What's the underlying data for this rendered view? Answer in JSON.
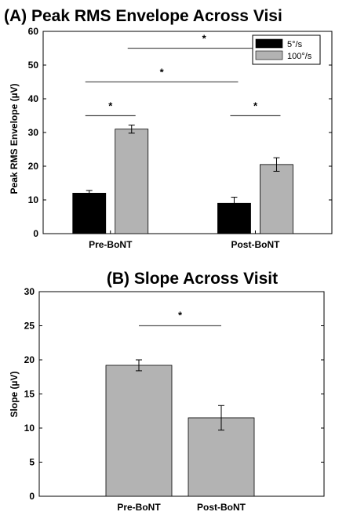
{
  "colors": {
    "series_dark": "#000000",
    "series_light": "#b3b3b3",
    "axis": "#000000",
    "sig_line": "#555555"
  },
  "chart_data": [
    {
      "type": "bar",
      "title": "(A) Peak RMS Envelope Across Visi",
      "ylabel": "Peak RMS Envelope (µV)",
      "xlabel": "",
      "categories": [
        "Pre-BoNT",
        "Post-BoNT"
      ],
      "ylim": [
        0,
        60
      ],
      "yticks": [
        0,
        10,
        20,
        30,
        40,
        50,
        60
      ],
      "grid": false,
      "legend": "top-right",
      "series": [
        {
          "name": "5°/s",
          "values": [
            12,
            9
          ],
          "errors": [
            0.8,
            1.8
          ]
        },
        {
          "name": "100°/s",
          "values": [
            31,
            20.5
          ],
          "errors": [
            1.2,
            2.0
          ]
        }
      ],
      "significance": [
        {
          "label": "*",
          "between": "Pre-BoNT 5°/s vs Pre-BoNT 100°/s"
        },
        {
          "label": "*",
          "between": "Post-BoNT 5°/s vs Post-BoNT 100°/s"
        },
        {
          "label": "*",
          "between": "Pre-BoNT 5°/s vs Post-BoNT 5°/s"
        },
        {
          "label": "*",
          "between": "Pre-BoNT 100°/s vs Post-BoNT 100°/s"
        }
      ]
    },
    {
      "type": "bar",
      "title": "(B) Slope Across Visit",
      "ylabel": "Slope (µV)",
      "xlabel": "",
      "categories": [
        "Pre-BoNT",
        "Post-BoNT"
      ],
      "ylim": [
        0,
        30
      ],
      "yticks": [
        0,
        5,
        10,
        15,
        20,
        25,
        30
      ],
      "grid": false,
      "values": [
        19.2,
        11.5
      ],
      "errors": [
        0.8,
        1.8
      ],
      "significance": [
        {
          "label": "*",
          "between": "Pre-BoNT vs Post-BoNT"
        }
      ]
    }
  ]
}
